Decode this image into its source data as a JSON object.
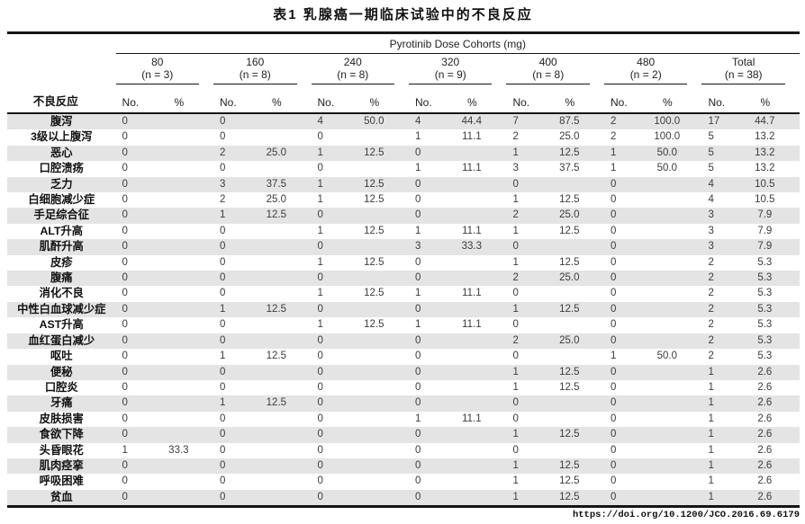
{
  "title": "表1  乳腺癌一期临床试验中的不良反应",
  "table": {
    "spanner": "Pyrotinib Dose Cohorts (mg)",
    "row_header": "不良反应",
    "col_subheaders": {
      "no": "No.",
      "pct": "%"
    },
    "cohorts": [
      {
        "dose": "80",
        "n": "(n = 3)"
      },
      {
        "dose": "160",
        "n": "(n = 8)"
      },
      {
        "dose": "240",
        "n": "(n = 8)"
      },
      {
        "dose": "320",
        "n": "(n = 9)"
      },
      {
        "dose": "400",
        "n": "(n = 8)"
      },
      {
        "dose": "480",
        "n": "(n = 2)"
      },
      {
        "dose": "Total",
        "n": "(n = 38)"
      }
    ],
    "rows": [
      {
        "label": "腹泻",
        "values": [
          "0",
          "",
          "0",
          "",
          "4",
          "50.0",
          "4",
          "44.4",
          "7",
          "87.5",
          "2",
          "100.0",
          "17",
          "44.7"
        ]
      },
      {
        "label": "3级以上腹泻",
        "values": [
          "0",
          "",
          "0",
          "",
          "0",
          "",
          "1",
          "11.1",
          "2",
          "25.0",
          "2",
          "100.0",
          "5",
          "13.2"
        ]
      },
      {
        "label": "恶心",
        "values": [
          "0",
          "",
          "2",
          "25.0",
          "1",
          "12.5",
          "0",
          "",
          "1",
          "12.5",
          "1",
          "50.0",
          "5",
          "13.2"
        ]
      },
      {
        "label": "口腔溃疡",
        "values": [
          "0",
          "",
          "0",
          "",
          "0",
          "",
          "1",
          "11.1",
          "3",
          "37.5",
          "1",
          "50.0",
          "5",
          "13.2"
        ]
      },
      {
        "label": "乏力",
        "values": [
          "0",
          "",
          "3",
          "37.5",
          "1",
          "12.5",
          "0",
          "",
          "0",
          "",
          "0",
          "",
          "4",
          "10.5"
        ]
      },
      {
        "label": "白细胞减少症",
        "values": [
          "0",
          "",
          "2",
          "25.0",
          "1",
          "12.5",
          "0",
          "",
          "1",
          "12.5",
          "0",
          "",
          "4",
          "10.5"
        ]
      },
      {
        "label": "手足综合征",
        "values": [
          "0",
          "",
          "1",
          "12.5",
          "0",
          "",
          "0",
          "",
          "2",
          "25.0",
          "0",
          "",
          "3",
          "7.9"
        ]
      },
      {
        "label": "ALT升高",
        "values": [
          "0",
          "",
          "0",
          "",
          "1",
          "12.5",
          "1",
          "11.1",
          "1",
          "12.5",
          "0",
          "",
          "3",
          "7.9"
        ]
      },
      {
        "label": "肌酐升高",
        "values": [
          "0",
          "",
          "0",
          "",
          "0",
          "",
          "3",
          "33.3",
          "0",
          "",
          "0",
          "",
          "3",
          "7.9"
        ]
      },
      {
        "label": "皮疹",
        "values": [
          "0",
          "",
          "0",
          "",
          "1",
          "12.5",
          "0",
          "",
          "1",
          "12.5",
          "0",
          "",
          "2",
          "5.3"
        ]
      },
      {
        "label": "腹痛",
        "values": [
          "0",
          "",
          "0",
          "",
          "0",
          "",
          "0",
          "",
          "2",
          "25.0",
          "0",
          "",
          "2",
          "5.3"
        ]
      },
      {
        "label": "消化不良",
        "values": [
          "0",
          "",
          "0",
          "",
          "1",
          "12.5",
          "1",
          "11.1",
          "0",
          "",
          "0",
          "",
          "2",
          "5.3"
        ]
      },
      {
        "label": "中性白血球减少症",
        "values": [
          "0",
          "",
          "1",
          "12.5",
          "0",
          "",
          "0",
          "",
          "1",
          "12.5",
          "0",
          "",
          "2",
          "5.3"
        ]
      },
      {
        "label": "AST升高",
        "values": [
          "0",
          "",
          "0",
          "",
          "1",
          "12.5",
          "1",
          "11.1",
          "0",
          "",
          "0",
          "",
          "2",
          "5.3"
        ]
      },
      {
        "label": "血红蛋白减少",
        "values": [
          "0",
          "",
          "0",
          "",
          "0",
          "",
          "0",
          "",
          "2",
          "25.0",
          "0",
          "",
          "2",
          "5.3"
        ]
      },
      {
        "label": "呕吐",
        "values": [
          "0",
          "",
          "1",
          "12.5",
          "0",
          "",
          "0",
          "",
          "0",
          "",
          "1",
          "50.0",
          "2",
          "5.3"
        ]
      },
      {
        "label": "便秘",
        "values": [
          "0",
          "",
          "0",
          "",
          "0",
          "",
          "0",
          "",
          "1",
          "12.5",
          "0",
          "",
          "1",
          "2.6"
        ]
      },
      {
        "label": "口腔炎",
        "values": [
          "0",
          "",
          "0",
          "",
          "0",
          "",
          "0",
          "",
          "1",
          "12.5",
          "0",
          "",
          "1",
          "2.6"
        ]
      },
      {
        "label": "牙痛",
        "values": [
          "0",
          "",
          "1",
          "12.5",
          "0",
          "",
          "0",
          "",
          "0",
          "",
          "0",
          "",
          "1",
          "2.6"
        ]
      },
      {
        "label": "皮肤损害",
        "values": [
          "0",
          "",
          "0",
          "",
          "0",
          "",
          "1",
          "11.1",
          "0",
          "",
          "0",
          "",
          "1",
          "2.6"
        ]
      },
      {
        "label": "食欲下降",
        "values": [
          "0",
          "",
          "0",
          "",
          "0",
          "",
          "0",
          "",
          "1",
          "12.5",
          "0",
          "",
          "1",
          "2.6"
        ]
      },
      {
        "label": "头昏眼花",
        "values": [
          "1",
          "33.3",
          "0",
          "",
          "0",
          "",
          "0",
          "",
          "0",
          "",
          "0",
          "",
          "1",
          "2.6"
        ]
      },
      {
        "label": "肌肉痉挛",
        "values": [
          "0",
          "",
          "0",
          "",
          "0",
          "",
          "0",
          "",
          "1",
          "12.5",
          "0",
          "",
          "1",
          "2.6"
        ]
      },
      {
        "label": "呼吸困难",
        "values": [
          "0",
          "",
          "0",
          "",
          "0",
          "",
          "0",
          "",
          "1",
          "12.5",
          "0",
          "",
          "1",
          "2.6"
        ]
      },
      {
        "label": "贫血",
        "values": [
          "0",
          "",
          "0",
          "",
          "0",
          "",
          "0",
          "",
          "1",
          "12.5",
          "0",
          "",
          "1",
          "2.6"
        ]
      }
    ]
  },
  "footer": {
    "doi": "https://doi.org/10.1200/JCO.2016.69.6179"
  },
  "colors": {
    "stripe": "#e4e4e4",
    "border": "#151515",
    "text": "#3c3c3c"
  }
}
